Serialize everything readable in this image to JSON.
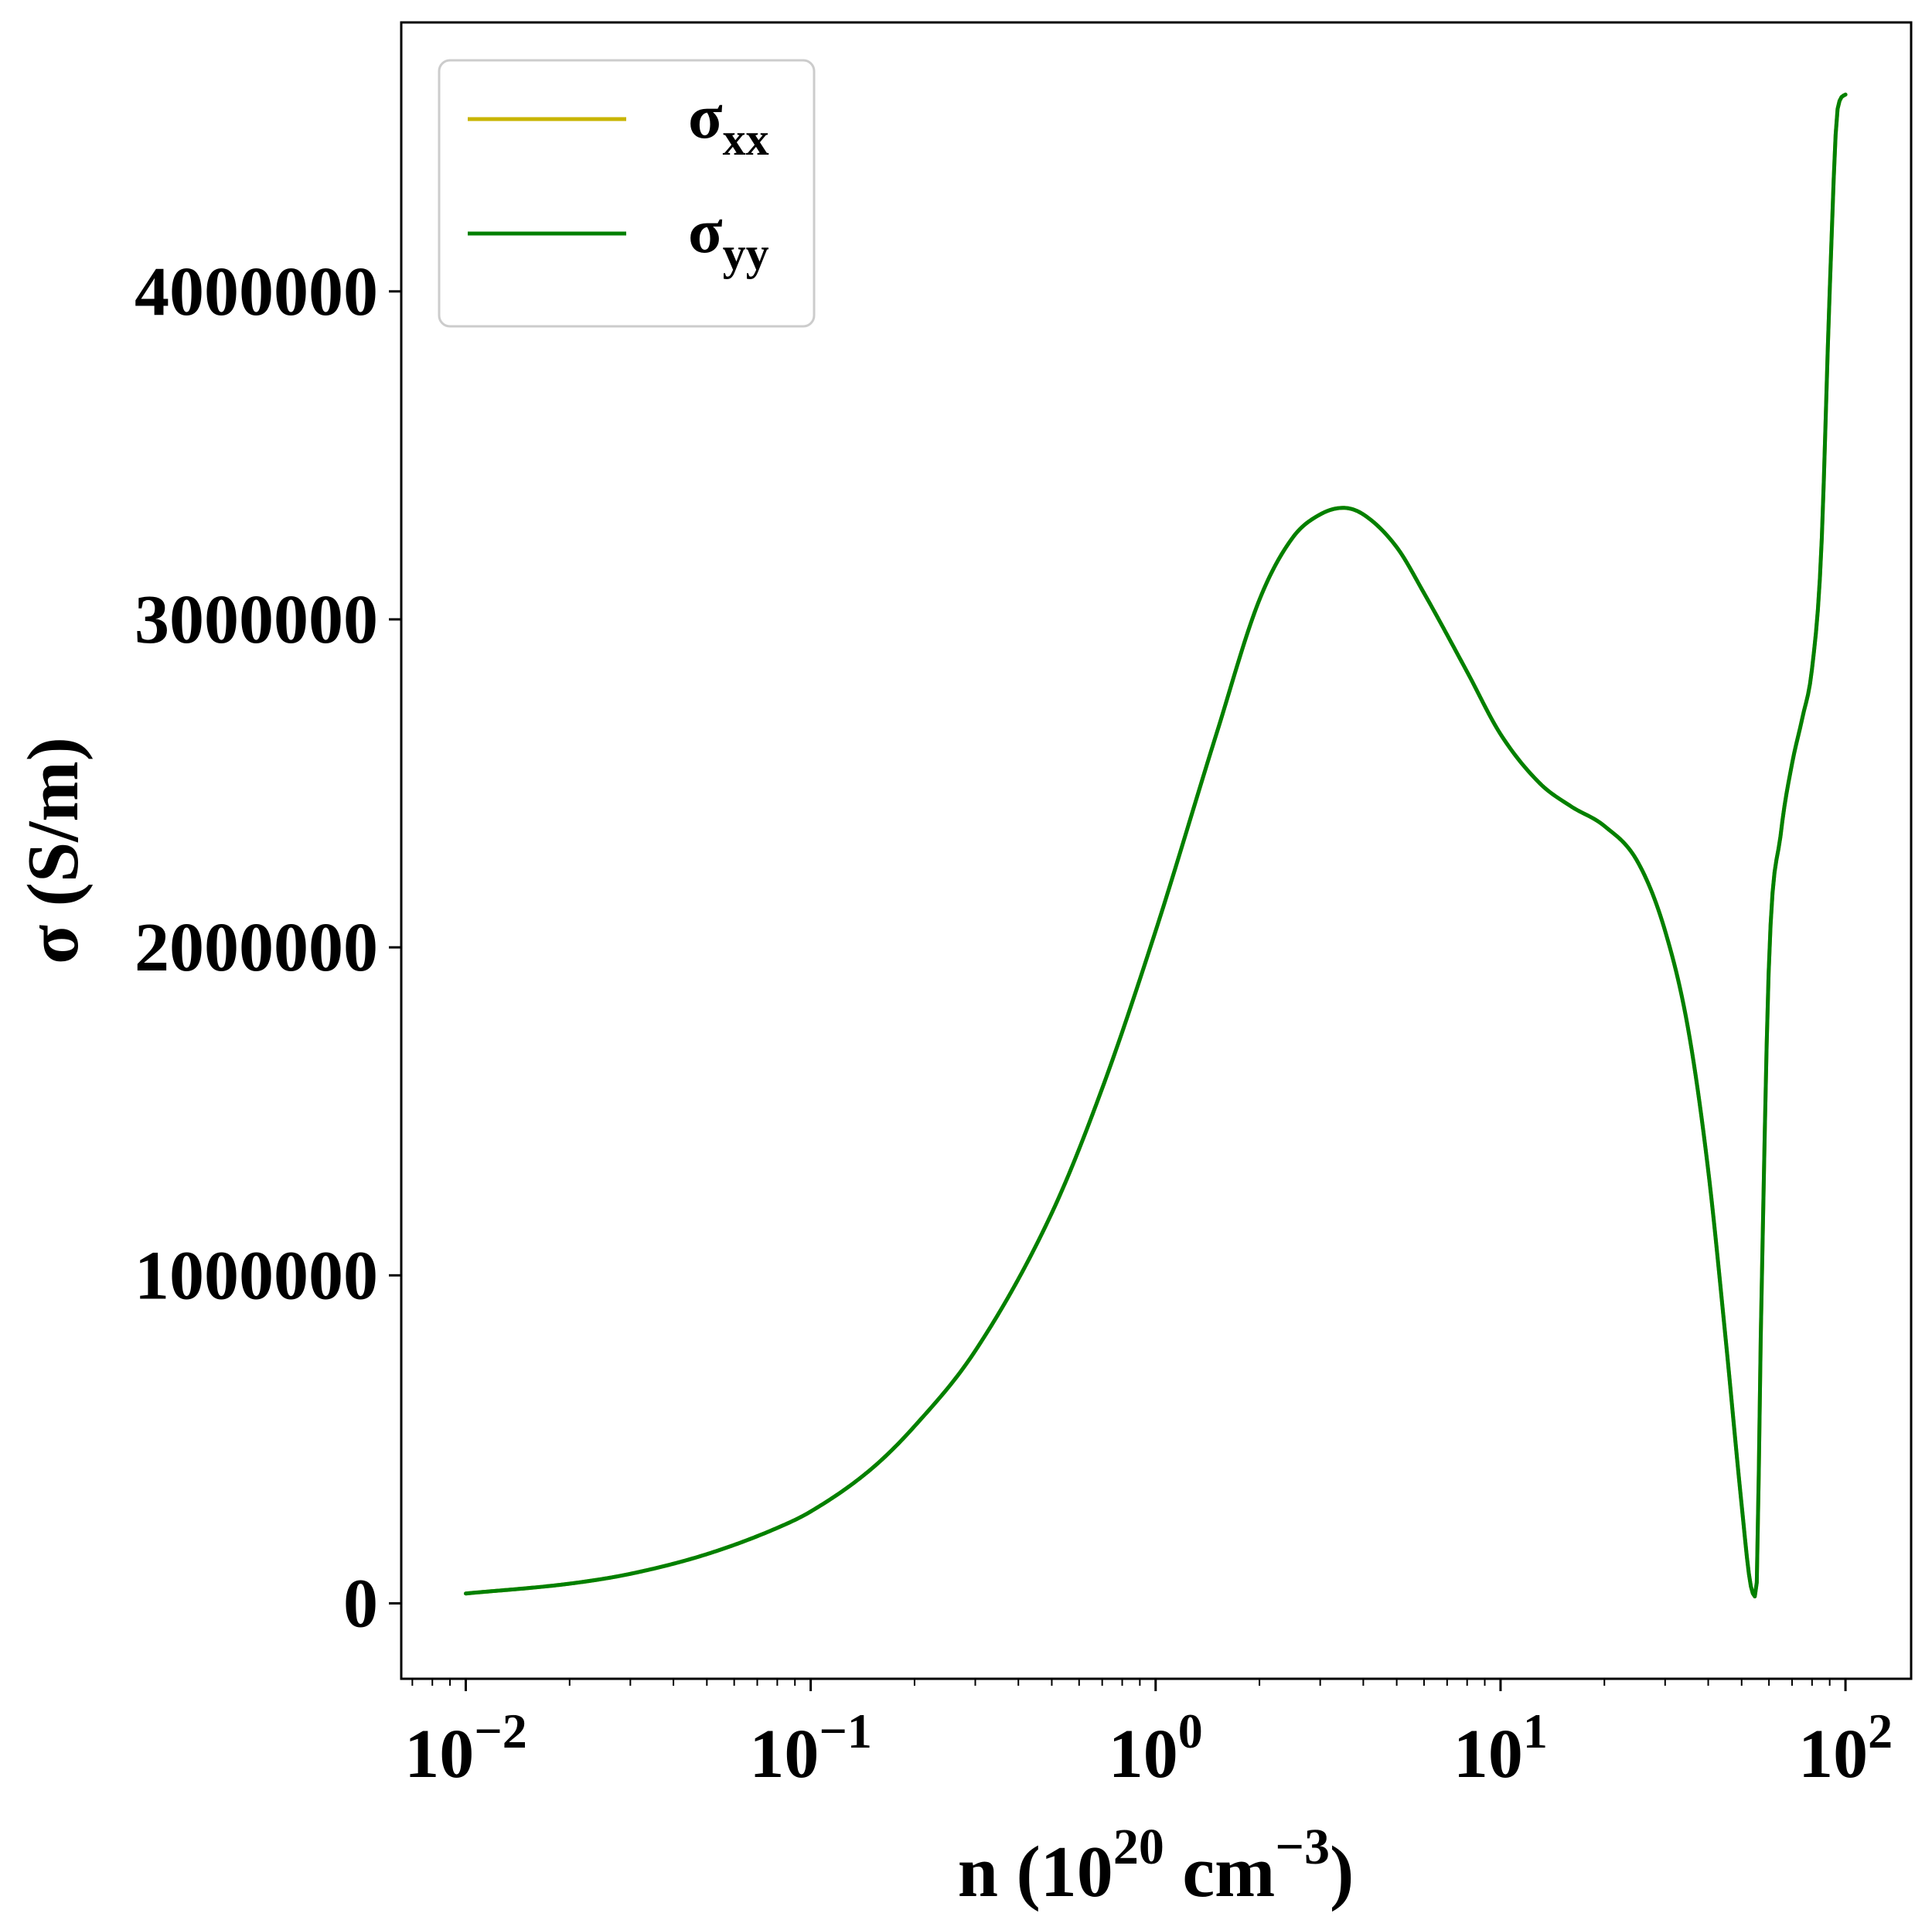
{
  "chart_data": {
    "type": "line",
    "x_scale": "log",
    "xlim": [
      0.0065,
      155
    ],
    "ylim": [
      -230000,
      4820000
    ],
    "grid": false,
    "legend_position": "top-left",
    "xlabel": {
      "prefix": "n (10",
      "sup1": "20",
      "middle": " cm",
      "sup2": "−3",
      "suffix": ")"
    },
    "ylabel": "σ (S/m)",
    "x_ticks": [
      {
        "value": 0.01,
        "base": "10",
        "exp": "−2"
      },
      {
        "value": 0.1,
        "base": "10",
        "exp": "−1"
      },
      {
        "value": 1,
        "base": "10",
        "exp": "0"
      },
      {
        "value": 10,
        "base": "10",
        "exp": "1"
      },
      {
        "value": 100,
        "base": "10",
        "exp": "2"
      }
    ],
    "y_ticks": [
      {
        "value": 0,
        "label": "0"
      },
      {
        "value": 1000000,
        "label": "1000000"
      },
      {
        "value": 2000000,
        "label": "2000000"
      },
      {
        "value": 3000000,
        "label": "3000000"
      },
      {
        "value": 4000000,
        "label": "4000000"
      }
    ],
    "series": [
      {
        "name": "σxx",
        "legend": {
          "main": "σ",
          "sub": "xx"
        },
        "color": "#c8b400",
        "x": [
          0.01,
          0.02,
          0.03,
          0.05,
          0.08,
          0.1,
          0.15,
          0.2,
          0.3,
          0.5,
          0.7,
          1.0,
          1.5,
          2.0,
          2.5,
          3.0,
          3.5,
          4.0,
          5.0,
          6.0,
          8.0,
          10.0,
          13.0,
          16.0,
          20.0,
          25.0,
          30.0,
          35.0,
          40.0,
          45.0,
          50.0,
          53.0,
          55.0,
          57.0,
          60.0,
          65.0,
          70.0,
          75.0,
          80.0,
          85.0,
          90.0,
          95.0,
          100.0
        ],
        "y": [
          30000,
          60000,
          90000,
          150000,
          230000,
          280000,
          410000,
          540000,
          770000,
          1190000,
          1570000,
          2050000,
          2650000,
          3060000,
          3250000,
          3320000,
          3340000,
          3320000,
          3220000,
          3080000,
          2840000,
          2650000,
          2500000,
          2430000,
          2370000,
          2260000,
          2050000,
          1750000,
          1320000,
          800000,
          300000,
          60000,
          20000,
          900000,
          1950000,
          2350000,
          2560000,
          2700000,
          2850000,
          3200000,
          4000000,
          4560000,
          4600000
        ]
      },
      {
        "name": "σyy",
        "legend": {
          "main": "σ",
          "sub": "yy"
        },
        "color": "#008000",
        "x": [
          0.01,
          0.02,
          0.03,
          0.05,
          0.08,
          0.1,
          0.15,
          0.2,
          0.3,
          0.5,
          0.7,
          1.0,
          1.5,
          2.0,
          2.5,
          3.0,
          3.5,
          4.0,
          5.0,
          6.0,
          8.0,
          10.0,
          13.0,
          16.0,
          20.0,
          25.0,
          30.0,
          35.0,
          40.0,
          45.0,
          50.0,
          53.0,
          55.0,
          57.0,
          60.0,
          65.0,
          70.0,
          75.0,
          80.0,
          85.0,
          90.0,
          95.0,
          100.0
        ],
        "y": [
          30000,
          60000,
          90000,
          150000,
          230000,
          280000,
          410000,
          540000,
          770000,
          1190000,
          1570000,
          2050000,
          2650000,
          3060000,
          3250000,
          3320000,
          3340000,
          3320000,
          3220000,
          3080000,
          2840000,
          2650000,
          2500000,
          2430000,
          2370000,
          2260000,
          2050000,
          1750000,
          1320000,
          800000,
          300000,
          60000,
          20000,
          900000,
          1950000,
          2350000,
          2560000,
          2700000,
          2850000,
          3200000,
          4000000,
          4560000,
          4600000
        ]
      }
    ]
  }
}
